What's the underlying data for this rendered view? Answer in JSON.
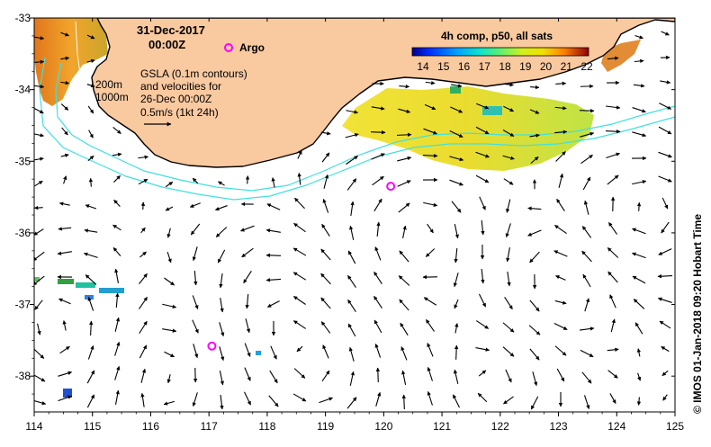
{
  "map": {
    "title_date": "31-Dec-2017",
    "title_time": "00:00Z",
    "argo_label": "Argo",
    "gsla_lines": [
      "GSLA (0.1m contours)",
      "and velocities for",
      "26-Dec 00:00Z",
      "0.5m/s (1kt 24h)"
    ],
    "isobath_labels": [
      "200m",
      "1000m"
    ],
    "credit": "© IMOS 01-Jan-2018 09:20 Hobart Time",
    "lon_ticks": [
      "114",
      "115",
      "116",
      "117",
      "118",
      "119",
      "120",
      "121",
      "122",
      "123",
      "124",
      "125"
    ],
    "lat_ticks": [
      "-33",
      "-34",
      "-35",
      "-36",
      "-37",
      "-38"
    ],
    "lon_range": [
      114,
      125
    ],
    "lat_range": [
      -33,
      -38.5
    ]
  },
  "colorbar": {
    "title": "4h comp, p50, all sats",
    "ticks": [
      "14",
      "15",
      "16",
      "17",
      "18",
      "19",
      "20",
      "21",
      "22"
    ],
    "colors": [
      "#00008f",
      "#0030ff",
      "#00a0ff",
      "#10e0d0",
      "#50f080",
      "#c0f020",
      "#f0e000",
      "#ff9000",
      "#e03000",
      "#900000"
    ]
  },
  "style": {
    "land": "#f9c9a0",
    "coast": "#000000",
    "isobath": "#40e0e0",
    "argo": "#ff00ff"
  },
  "argo_floats": [
    {
      "lon": 117.05,
      "lat": -37.58
    },
    {
      "lon": 120.12,
      "lat": -35.35
    }
  ]
}
